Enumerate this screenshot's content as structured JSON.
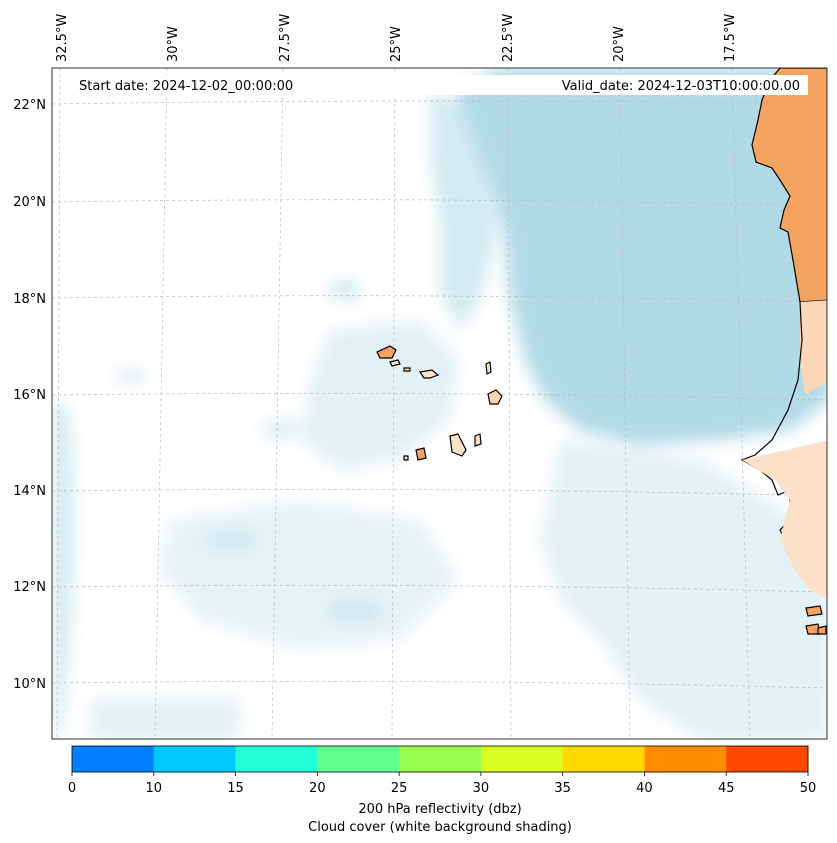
{
  "header": {
    "start_date": "Start date: 2024-12-02_00:00:00",
    "valid_date": "Valid_date: 2024-12-03T10:00:00.00"
  },
  "axes": {
    "lon_labels": [
      "32.5°W",
      "30°W",
      "27.5°W",
      "25°W",
      "22.5°W",
      "20°W",
      "17.5°W"
    ],
    "lat_labels": [
      "22°N",
      "20°N",
      "18°N",
      "16°N",
      "14°N",
      "12°N",
      "10°N"
    ]
  },
  "colorbar": {
    "ticks": [
      "0",
      "10",
      "15",
      "20",
      "25",
      "30",
      "35",
      "40",
      "45",
      "50"
    ],
    "colors": [
      "#0080ff",
      "#00c8ff",
      "#20ffd8",
      "#60ff90",
      "#98ff50",
      "#d8ff20",
      "#ffd800",
      "#ff8c00",
      "#ff4800"
    ],
    "label_line1": "200 hPa reflectivity (dbz)",
    "label_line2": "Cloud cover (white background shading)"
  },
  "colors": {
    "land": "#f4a460",
    "cloud": "#add8e6",
    "coast": "#000000"
  }
}
